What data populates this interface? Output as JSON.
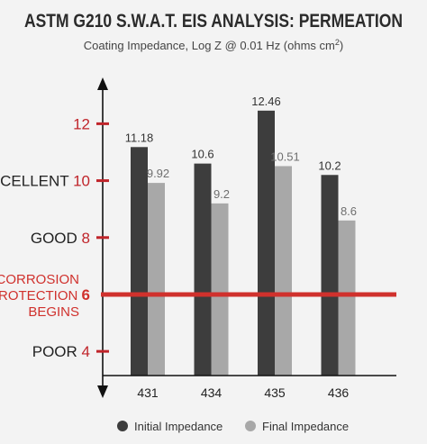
{
  "chart_data": {
    "type": "bar",
    "title": "ASTM G210 S.W.A.T. EIS ANALYSIS: PERMEATION",
    "subtitle": "Coating Impedance, Log Z  @ 0.01 Hz (ohms cm",
    "subtitle_sup": "2",
    "subtitle_end": ")",
    "categories": [
      "431",
      "434",
      "435",
      "436"
    ],
    "series": [
      {
        "name": "Initial Impedance",
        "values": [
          11.18,
          10.6,
          12.46,
          10.2
        ],
        "color": "#3d3d3d"
      },
      {
        "name": "Final Impedance",
        "values": [
          9.92,
          9.2,
          10.51,
          8.6
        ],
        "color": "#a8a8a8"
      }
    ],
    "data_labels": [
      [
        "11.18",
        "10.6",
        "12.46",
        "10.2"
      ],
      [
        "9.92",
        "9.2",
        "10.51",
        "8.6"
      ]
    ],
    "ylim": [
      3.15,
      13.5
    ],
    "y_ticks": [
      {
        "value": 12,
        "number": "12",
        "word": ""
      },
      {
        "value": 10,
        "number": "10",
        "word": "EXCELLENT"
      },
      {
        "value": 8,
        "number": "8",
        "word": "GOOD"
      },
      {
        "value": 4,
        "number": "4",
        "word": "POOR"
      }
    ],
    "threshold": {
      "value": 6,
      "number": "6",
      "lines": [
        "CORROSION",
        "PROTECTION",
        "BEGINS"
      ],
      "color": "#d0312d"
    },
    "tick_color": "#c0242a",
    "legend_position": "bottom",
    "grid": false
  }
}
